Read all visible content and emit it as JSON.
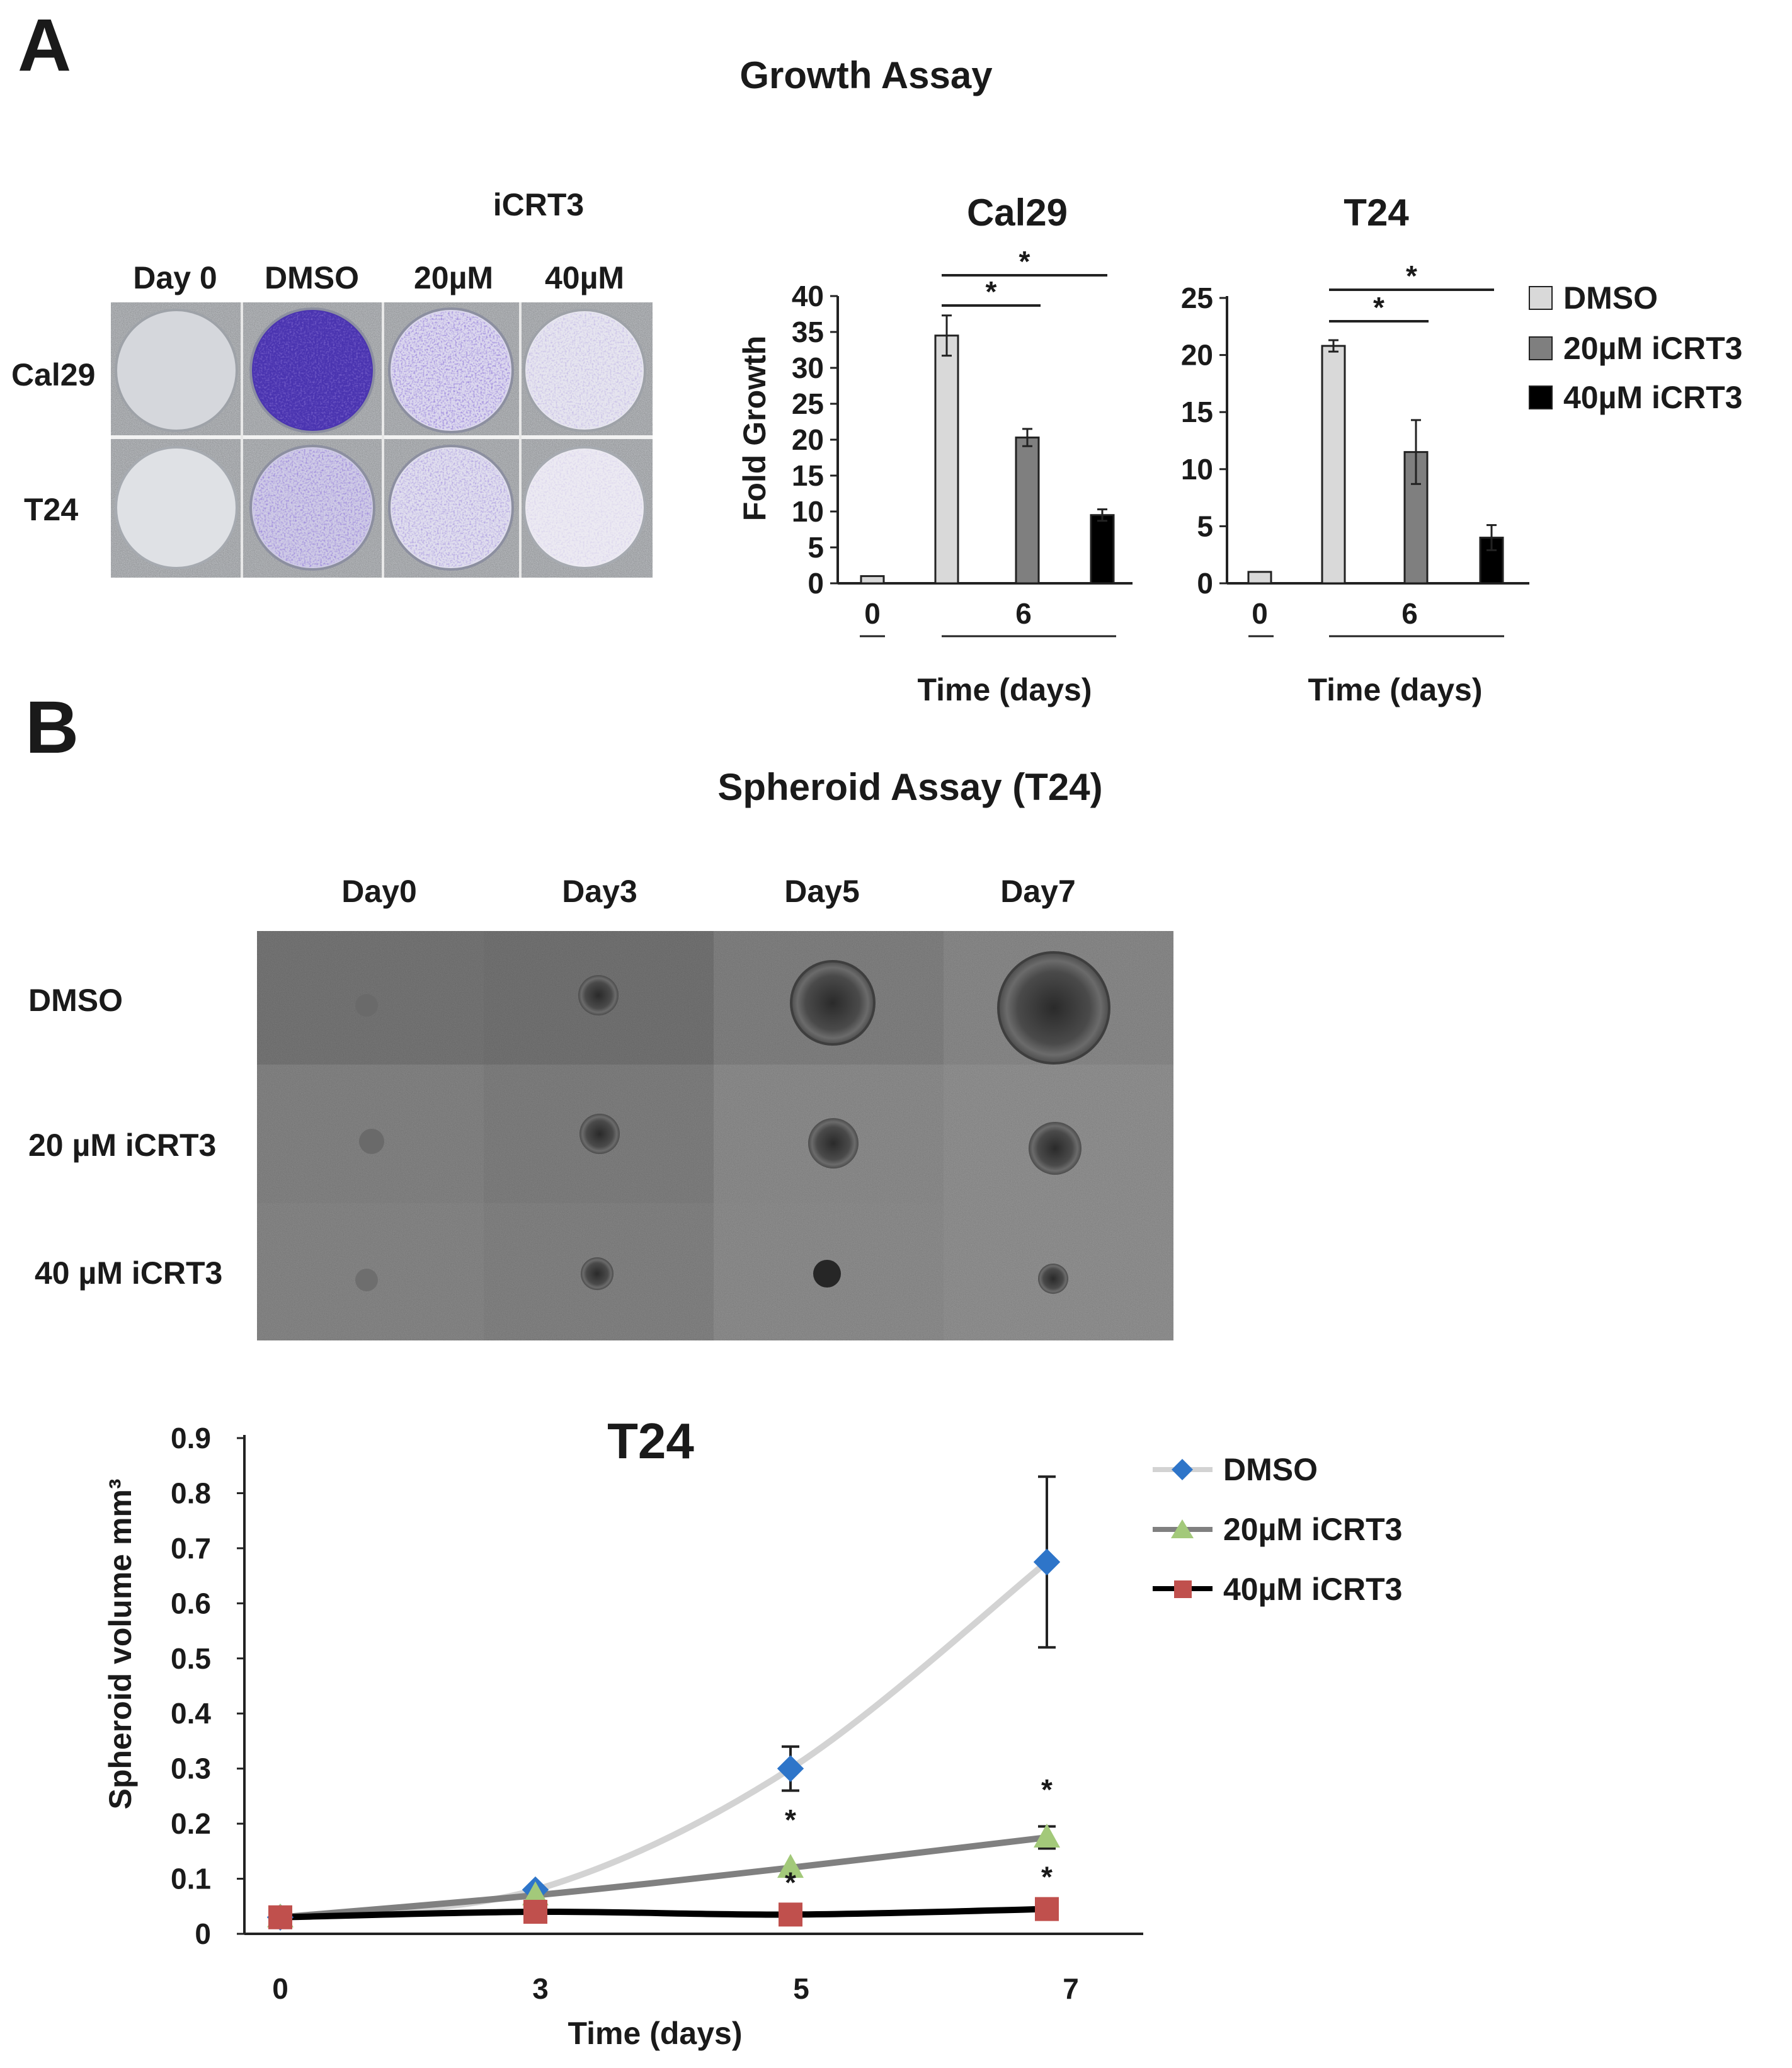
{
  "panel_a": {
    "letter": "A",
    "title": "Growth Assay",
    "plate": {
      "treatment_header": "iCRT3",
      "columns": [
        "Day 0",
        "DMSO",
        "20µM",
        "40µM"
      ],
      "rows": [
        "Cal29",
        "T24"
      ]
    }
  },
  "panel_b": {
    "letter": "B",
    "title": "Spheroid Assay (T24)",
    "micrographs": {
      "columns": [
        "Day0",
        "Day3",
        "Day5",
        "Day7"
      ],
      "rows": [
        "DMSO",
        "20 µM iCRT3",
        "40 µM iCRT3"
      ]
    }
  },
  "colors": {
    "dmso_bar": "#d9d9d9",
    "icrt20_bar": "#7f7f7f",
    "icrt40_bar": "#000000",
    "dmso_line": "#d3d3d3",
    "icrt20_line": "#808080",
    "icrt40_line": "#000000",
    "dmso_marker": "#2e75c9",
    "icrt20_marker": "#a3c97a",
    "icrt40_marker": "#c0504d",
    "plate_stain": "#4b34b3"
  },
  "chart_data": [
    {
      "type": "bar",
      "title": "Cal29",
      "ylabel": "Fold Growth",
      "xlabel": "Time (days)",
      "ylim": [
        0,
        40
      ],
      "yticks": [
        "0",
        "5",
        "10",
        "15",
        "20",
        "25",
        "30",
        "35",
        "40"
      ],
      "groups": [
        "0",
        "6"
      ],
      "bars": [
        {
          "group": "0",
          "series": "DMSO",
          "value": 1,
          "error": 0
        },
        {
          "group": "6",
          "series": "DMSO",
          "value": 34.5,
          "error": 2.8
        },
        {
          "group": "6",
          "series": "20µM iCRT3",
          "value": 20.3,
          "error": 1.2
        },
        {
          "group": "6",
          "series": "40µM iCRT3",
          "value": 9.5,
          "error": 0.8
        }
      ],
      "significance": [
        "*",
        "*"
      ]
    },
    {
      "type": "bar",
      "title": "T24",
      "xlabel": "Time (days)",
      "ylim": [
        0,
        25
      ],
      "yticks": [
        "0",
        "5",
        "10",
        "15",
        "20",
        "25"
      ],
      "groups": [
        "0",
        "6"
      ],
      "bars": [
        {
          "group": "0",
          "series": "DMSO",
          "value": 1,
          "error": 0
        },
        {
          "group": "6",
          "series": "DMSO",
          "value": 20.8,
          "error": 0.5
        },
        {
          "group": "6",
          "series": "20µM iCRT3",
          "value": 11.5,
          "error": 2.8
        },
        {
          "group": "6",
          "series": "40µM iCRT3",
          "value": 4.0,
          "error": 1.1
        }
      ],
      "significance": [
        "*",
        "*"
      ],
      "legend": [
        "DMSO",
        "20µM iCRT3",
        "40µM iCRT3"
      ]
    },
    {
      "type": "line",
      "title": "T24",
      "ylabel": "Spheroid volume mm³",
      "xlabel": "Time (days)",
      "x": [
        0,
        3,
        5,
        7
      ],
      "ylim": [
        0,
        0.9
      ],
      "yticks": [
        "0",
        "0.1",
        "0.2",
        "0.3",
        "0.4",
        "0.5",
        "0.6",
        "0.7",
        "0.8",
        "0.9"
      ],
      "series": [
        {
          "name": "DMSO",
          "values": [
            0.03,
            0.08,
            0.3,
            0.675
          ],
          "errors": [
            0,
            0,
            0.04,
            0.155
          ],
          "stars": [
            "",
            "",
            "",
            ""
          ]
        },
        {
          "name": "20µM iCRT3",
          "values": [
            0.03,
            0.07,
            0.12,
            0.175
          ],
          "errors": [
            0,
            0,
            0,
            0.02
          ],
          "stars": [
            "",
            "",
            "*",
            "*"
          ]
        },
        {
          "name": "40µM iCRT3",
          "values": [
            0.03,
            0.04,
            0.035,
            0.045
          ],
          "errors": [
            0,
            0,
            0,
            0
          ],
          "stars": [
            "",
            "",
            "*",
            "*"
          ]
        }
      ],
      "legend": [
        "DMSO",
        "20µM iCRT3",
        "40µM iCRT3"
      ]
    }
  ]
}
